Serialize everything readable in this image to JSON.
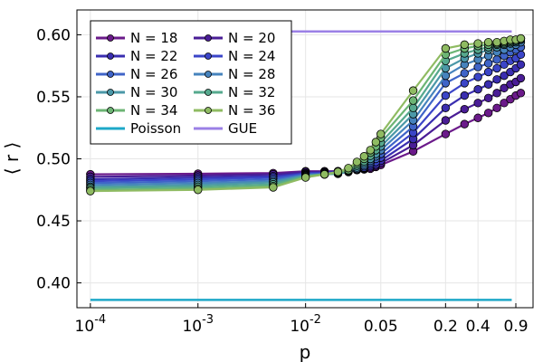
{
  "chart_data": {
    "type": "line",
    "xscale": "log",
    "xlabel": "p",
    "ylabel": "⟨ r ⟩",
    "ylim": [
      0.38,
      0.62
    ],
    "xlim": [
      7.5e-05,
      1.3
    ],
    "grid": true,
    "legend_position": "top-left",
    "legend_columns": 2,
    "x": [
      0.0001,
      0.001,
      0.005,
      0.01,
      0.015,
      0.02,
      0.025,
      0.03,
      0.035,
      0.04,
      0.045,
      0.05,
      0.1,
      0.2,
      0.3,
      0.4,
      0.5,
      0.6,
      0.7,
      0.8,
      0.9,
      1.0
    ],
    "x_ticks": [
      {
        "value": 0.0001,
        "base": "10",
        "exp": "-4"
      },
      {
        "value": 0.001,
        "base": "10",
        "exp": "-3"
      },
      {
        "value": 0.01,
        "base": "10",
        "exp": "-2"
      },
      {
        "value": 0.05,
        "label": "0.05"
      },
      {
        "value": 0.2,
        "label": "0.2"
      },
      {
        "value": 0.4,
        "label": "0.4"
      },
      {
        "value": 0.9,
        "label": "0.9"
      }
    ],
    "y_ticks": [
      {
        "value": 0.4,
        "label": "0.40"
      },
      {
        "value": 0.45,
        "label": "0.45"
      },
      {
        "value": 0.5,
        "label": "0.50"
      },
      {
        "value": 0.55,
        "label": "0.55"
      },
      {
        "value": 0.6,
        "label": "0.60"
      }
    ],
    "series": [
      {
        "name": "N = 18",
        "color": "#6b1a8a",
        "values": [
          0.4875,
          0.488,
          0.4885,
          0.49,
          0.49,
          0.49,
          0.4905,
          0.491,
          0.4915,
          0.492,
          0.4935,
          0.495,
          0.506,
          0.52,
          0.528,
          0.533,
          0.537,
          0.541,
          0.545,
          0.548,
          0.551,
          0.553
        ]
      },
      {
        "name": "N = 20",
        "color": "#4a1d96",
        "values": [
          0.4855,
          0.4865,
          0.4875,
          0.4895,
          0.4895,
          0.49,
          0.4905,
          0.491,
          0.492,
          0.493,
          0.4945,
          0.4965,
          0.511,
          0.531,
          0.54,
          0.545,
          0.549,
          0.553,
          0.557,
          0.56,
          0.562,
          0.565
        ]
      },
      {
        "name": "N = 22",
        "color": "#3a2eb0",
        "values": [
          0.4835,
          0.485,
          0.486,
          0.4885,
          0.489,
          0.4895,
          0.49,
          0.491,
          0.4925,
          0.494,
          0.4955,
          0.4985,
          0.516,
          0.541,
          0.551,
          0.556,
          0.56,
          0.564,
          0.567,
          0.57,
          0.573,
          0.576
        ]
      },
      {
        "name": "N = 24",
        "color": "#3b45c8",
        "values": [
          0.482,
          0.4835,
          0.485,
          0.488,
          0.4885,
          0.489,
          0.4895,
          0.491,
          0.493,
          0.4955,
          0.4975,
          0.501,
          0.521,
          0.551,
          0.561,
          0.566,
          0.57,
          0.573,
          0.576,
          0.579,
          0.581,
          0.584
        ]
      },
      {
        "name": "N = 26",
        "color": "#3f64c8",
        "values": [
          0.4805,
          0.482,
          0.4835,
          0.4875,
          0.488,
          0.4885,
          0.4895,
          0.4915,
          0.494,
          0.497,
          0.5,
          0.504,
          0.526,
          0.561,
          0.569,
          0.574,
          0.577,
          0.58,
          0.583,
          0.586,
          0.588,
          0.59
        ]
      },
      {
        "name": "N = 28",
        "color": "#4683bd",
        "values": [
          0.479,
          0.4805,
          0.482,
          0.487,
          0.4875,
          0.488,
          0.4895,
          0.492,
          0.495,
          0.4985,
          0.502,
          0.507,
          0.531,
          0.567,
          0.576,
          0.58,
          0.583,
          0.586,
          0.588,
          0.59,
          0.592,
          0.594
        ]
      },
      {
        "name": "N = 30",
        "color": "#4b98a8",
        "values": [
          0.4775,
          0.479,
          0.481,
          0.4865,
          0.4875,
          0.488,
          0.49,
          0.493,
          0.4965,
          0.5,
          0.504,
          0.51,
          0.536,
          0.573,
          0.581,
          0.585,
          0.588,
          0.59,
          0.592,
          0.593,
          0.594,
          0.596
        ]
      },
      {
        "name": "N = 32",
        "color": "#56a98e",
        "values": [
          0.4765,
          0.4775,
          0.4795,
          0.486,
          0.4875,
          0.4885,
          0.4905,
          0.4945,
          0.498,
          0.5025,
          0.507,
          0.513,
          0.541,
          0.579,
          0.585,
          0.588,
          0.59,
          0.592,
          0.593,
          0.594,
          0.595,
          0.597
        ]
      },
      {
        "name": "N = 34",
        "color": "#6cb574",
        "values": [
          0.475,
          0.476,
          0.478,
          0.4855,
          0.4875,
          0.489,
          0.491,
          0.496,
          0.5,
          0.505,
          0.51,
          0.517,
          0.547,
          0.584,
          0.589,
          0.591,
          0.592,
          0.593,
          0.594,
          0.595,
          0.596,
          0.597
        ]
      },
      {
        "name": "N = 36",
        "color": "#8fbb62",
        "values": [
          0.474,
          0.475,
          0.477,
          0.485,
          0.4875,
          0.4895,
          0.4925,
          0.4975,
          0.502,
          0.507,
          0.5135,
          0.52,
          0.555,
          0.589,
          0.592,
          0.593,
          0.594,
          0.594,
          0.595,
          0.596,
          0.596,
          0.597
        ]
      }
    ],
    "reference_lines": [
      {
        "name": "Poisson",
        "color": "#1ea8c8",
        "value": 0.3863
      },
      {
        "name": "GUE",
        "color": "#9b80e6",
        "value": 0.6027
      }
    ]
  }
}
